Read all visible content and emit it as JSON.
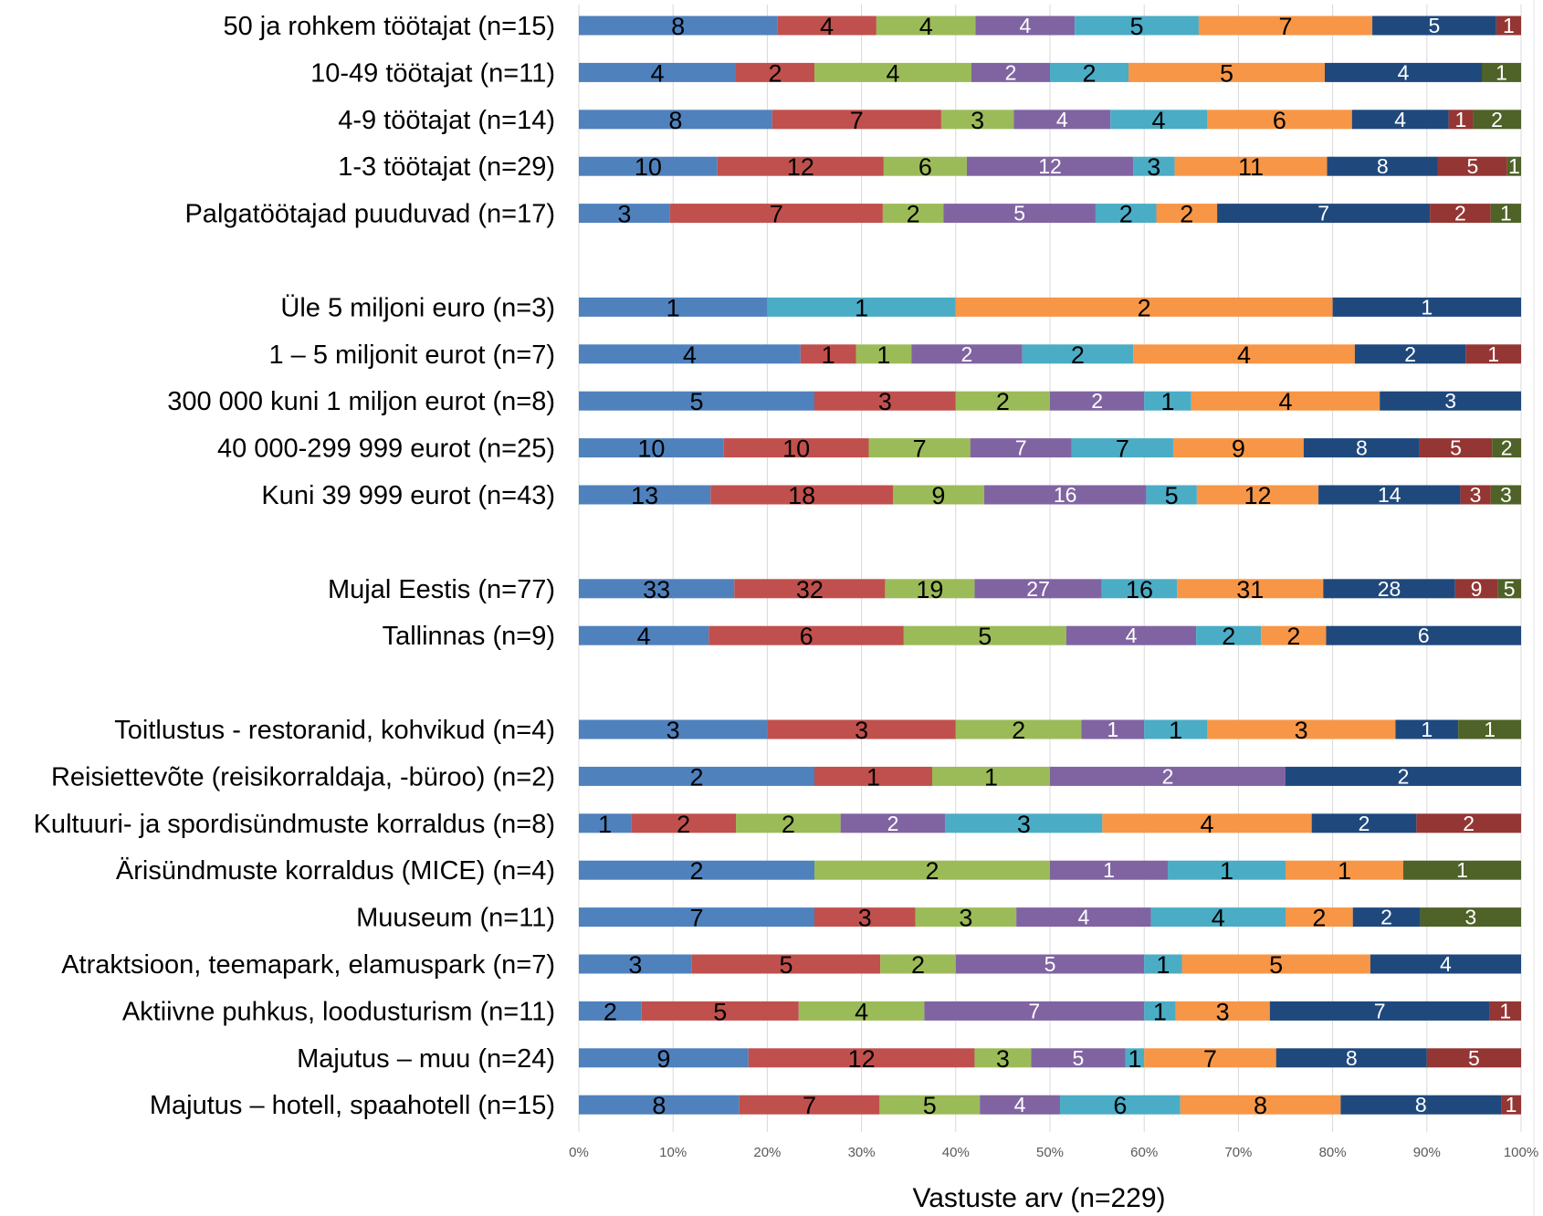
{
  "chart_data": {
    "type": "bar",
    "orientation": "horizontal",
    "stacking": "percent",
    "xlabel": "Vastuste arv (n=229)",
    "xlim": [
      0,
      100
    ],
    "x_ticks": [
      "0%",
      "10%",
      "20%",
      "30%",
      "40%",
      "50%",
      "60%",
      "70%",
      "80%",
      "90%",
      "100%"
    ],
    "grid": true,
    "legend": "none",
    "series_colors": [
      "#4f81bd",
      "#c0504d",
      "#9bbb59",
      "#8064a2",
      "#4bacc6",
      "#f79646",
      "#1f497d",
      "#943634",
      "#4f6228"
    ],
    "series_label_colors": [
      "#000000",
      "#000000",
      "#000000",
      "#ffffff",
      "#000000",
      "#000000",
      "#ffffff",
      "#ffffff",
      "#ffffff"
    ],
    "groups": [
      {
        "rows": [
          {
            "label": "50 ja rohkem töötajat (n=15)",
            "values": [
              8,
              4,
              4,
              4,
              5,
              7,
              5,
              1,
              0
            ]
          },
          {
            "label": "10-49 töötajat (n=11)",
            "values": [
              4,
              2,
              4,
              2,
              2,
              5,
              4,
              0,
              1
            ]
          },
          {
            "label": "4-9 töötajat (n=14)",
            "values": [
              8,
              7,
              3,
              4,
              4,
              6,
              4,
              1,
              2
            ]
          },
          {
            "label": "1-3 töötajat (n=29)",
            "values": [
              10,
              12,
              6,
              12,
              3,
              11,
              8,
              5,
              1
            ]
          },
          {
            "label": "Palgatöötajad puuduvad (n=17)",
            "values": [
              3,
              7,
              2,
              5,
              2,
              2,
              7,
              2,
              1
            ]
          }
        ]
      },
      {
        "rows": [
          {
            "label": "Üle 5 miljoni euro (n=3)",
            "values": [
              1,
              0,
              0,
              0,
              1,
              2,
              1,
              0,
              0
            ]
          },
          {
            "label": "1 – 5 miljonit eurot (n=7)",
            "values": [
              4,
              1,
              1,
              2,
              2,
              4,
              2,
              1,
              0
            ]
          },
          {
            "label": "300 000 kuni 1 miljon eurot (n=8)",
            "values": [
              5,
              3,
              2,
              2,
              1,
              4,
              3,
              0,
              0
            ]
          },
          {
            "label": "40 000-299 999 eurot (n=25)",
            "values": [
              10,
              10,
              7,
              7,
              7,
              9,
              8,
              5,
              2
            ]
          },
          {
            "label": "Kuni 39 999 eurot (n=43)",
            "values": [
              13,
              18,
              9,
              16,
              5,
              12,
              14,
              3,
              3
            ]
          }
        ]
      },
      {
        "rows": [
          {
            "label": "Mujal Eestis (n=77)",
            "values": [
              33,
              32,
              19,
              27,
              16,
              31,
              28,
              9,
              5
            ]
          },
          {
            "label": "Tallinnas (n=9)",
            "values": [
              4,
              6,
              5,
              4,
              2,
              2,
              6,
              0,
              0
            ]
          }
        ]
      },
      {
        "rows": [
          {
            "label": "Toitlustus - restoranid, kohvikud (n=4)",
            "values": [
              3,
              3,
              2,
              1,
              1,
              3,
              1,
              0,
              1
            ]
          },
          {
            "label": "Reisiettevõte (reisikorraldaja, -büroo) (n=2)",
            "values": [
              2,
              1,
              1,
              2,
              0,
              0,
              2,
              0,
              0
            ]
          },
          {
            "label": "Kultuuri- ja spordisündmuste korraldus (n=8)",
            "values": [
              1,
              2,
              2,
              2,
              3,
              4,
              2,
              2,
              0
            ]
          },
          {
            "label": "Ärisündmuste korraldus (MICE) (n=4)",
            "values": [
              2,
              0,
              2,
              1,
              1,
              1,
              0,
              0,
              1
            ]
          },
          {
            "label": "Muuseum (n=11)",
            "values": [
              7,
              3,
              3,
              4,
              4,
              2,
              2,
              0,
              3
            ]
          },
          {
            "label": "Atraktsioon, teemapark, elamuspark (n=7)",
            "values": [
              3,
              5,
              2,
              5,
              1,
              5,
              4,
              0,
              0
            ]
          },
          {
            "label": "Aktiivne puhkus, loodusturism (n=11)",
            "values": [
              2,
              5,
              4,
              7,
              1,
              3,
              7,
              1,
              0
            ]
          },
          {
            "label": "Majutus – muu (n=24)",
            "values": [
              9,
              12,
              3,
              5,
              1,
              7,
              8,
              5,
              0
            ]
          },
          {
            "label": "Majutus – hotell, spaahotell (n=15)",
            "values": [
              8,
              7,
              5,
              4,
              6,
              8,
              8,
              1,
              0
            ]
          }
        ]
      }
    ]
  }
}
